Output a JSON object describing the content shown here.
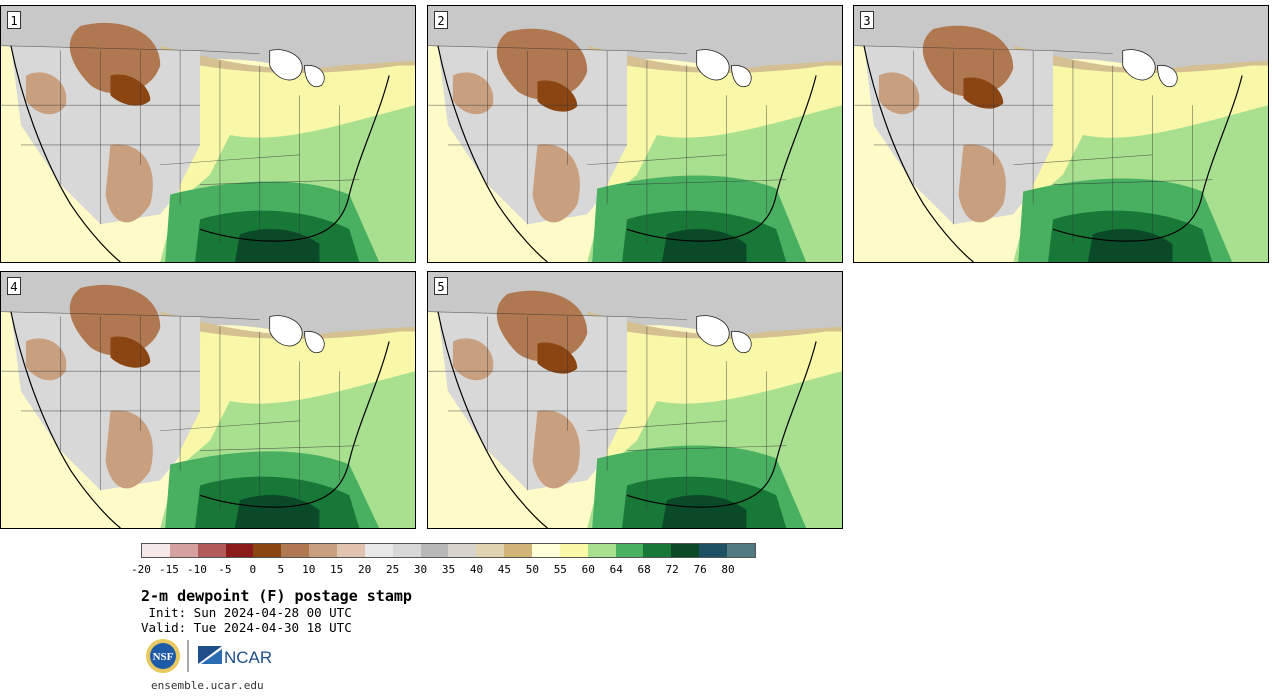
{
  "stamps": [
    {
      "label": "1"
    },
    {
      "label": "2"
    },
    {
      "label": "3"
    },
    {
      "label": "4"
    },
    {
      "label": "5"
    }
  ],
  "colorbar": {
    "colors": [
      "#f4e8e8",
      "#d4a0a0",
      "#b05a5a",
      "#8b1a1a",
      "#8b4513",
      "#b07850",
      "#c8a080",
      "#e0c4b0",
      "#e8e8e8",
      "#d8d8d8",
      "#b8b8b8",
      "#d8d4cc",
      "#e0d4b0",
      "#d0b478",
      "#ffffd8",
      "#f8f8a8",
      "#a8e090",
      "#48b060",
      "#187838",
      "#0a4a28",
      "#1e5064",
      "#507a80"
    ],
    "ticks": [
      "-20",
      "-15",
      "-10",
      "-5",
      "0",
      "5",
      "10",
      "15",
      "20",
      "25",
      "30",
      "35",
      "40",
      "45",
      "50",
      "55",
      "60",
      "64",
      "68",
      "72",
      "76",
      "80"
    ]
  },
  "caption": {
    "title": "2-m dewpoint (F) postage stamp",
    "init": " Init: Sun 2024-04-28 00 UTC",
    "valid": "Valid: Tue 2024-04-30 18 UTC"
  },
  "logos": {
    "nsf": "NSF",
    "ncar": "NCAR"
  },
  "footer": {
    "url": "ensemble.ucar.edu"
  }
}
